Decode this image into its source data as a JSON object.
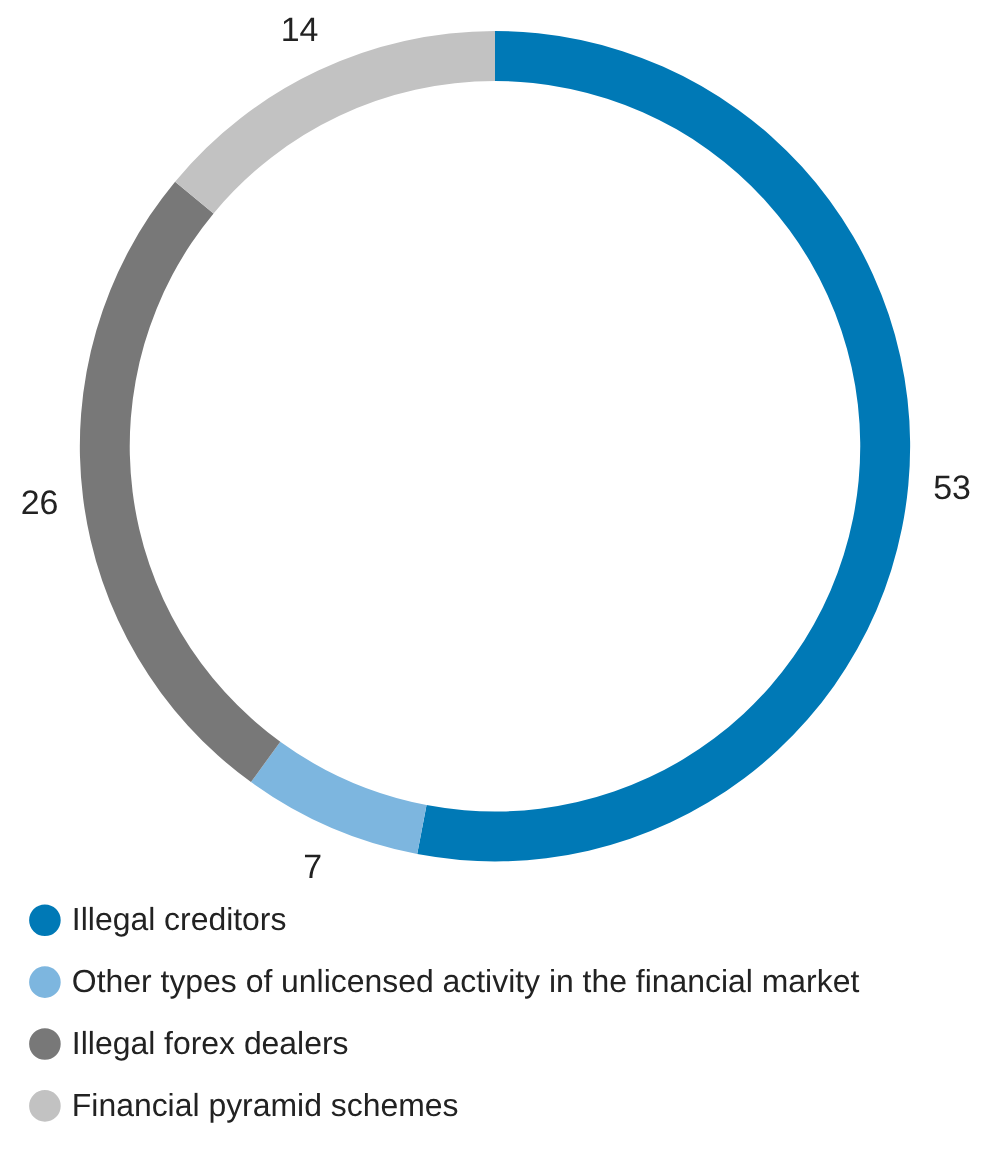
{
  "chart_data": {
    "type": "donut",
    "categories": [
      "Illegal creditors",
      "Other types of unlicensed activity in the financial market",
      "Illegal forex dealers",
      "Financial pyramid schemes"
    ],
    "values": [
      53,
      7,
      26,
      14
    ],
    "colors": [
      "#0079b6",
      "#7db6df",
      "#787878",
      "#c2c2c2"
    ],
    "data_labels": true,
    "legend": "bottom"
  }
}
